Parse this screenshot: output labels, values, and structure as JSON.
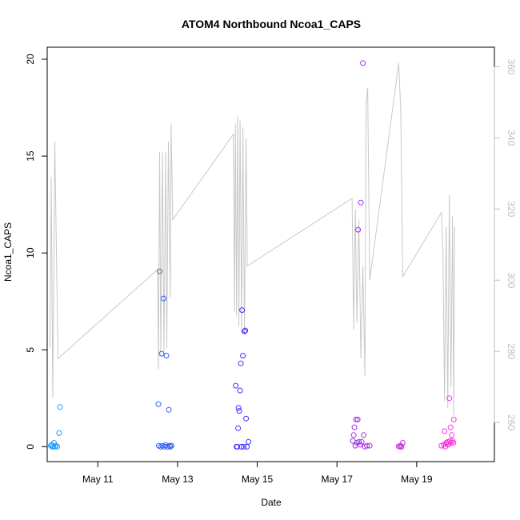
{
  "chart_data": {
    "type": "scatter",
    "title": "ATOM4 Northbound Ncoa1_CAPS",
    "xlabel": "Date",
    "ylabel": "Ncoa1_CAPS",
    "x_ticks": [
      "May 11",
      "May 13",
      "May 15",
      "May 17",
      "May 19"
    ],
    "x_tick_days": [
      11,
      13,
      15,
      17,
      19
    ],
    "xlim": [
      9.73,
      20.95
    ],
    "ylim": [
      -0.77,
      20.62
    ],
    "y_ticks": [
      0,
      5,
      10,
      15,
      20
    ],
    "y2_ticks": [
      260,
      280,
      300,
      320,
      340,
      360
    ],
    "y2lim": [
      249,
      365.5
    ],
    "y2_unit_note": "secondary axis for grey line series",
    "colors": {
      "line": "#c8c8c8",
      "axis": "#000000",
      "axis_right": "#bdbdbd",
      "marker_start": "#1fa2ff",
      "marker_mid": "#3f2bff",
      "marker_end": "#ff33dd"
    },
    "series": [
      {
        "name": "Ncoa1_CAPS",
        "kind": "points",
        "axis": "left",
        "points": [
          [
            9.82,
            0.05
          ],
          [
            9.84,
            0.1
          ],
          [
            9.86,
            0.0
          ],
          [
            9.88,
            0.02
          ],
          [
            9.9,
            0.2
          ],
          [
            9.92,
            0.0
          ],
          [
            9.95,
            0.05
          ],
          [
            9.98,
            0.0
          ],
          [
            10.03,
            0.7
          ],
          [
            10.05,
            2.05
          ],
          [
            12.52,
            2.2
          ],
          [
            12.53,
            0.05
          ],
          [
            12.55,
            9.05
          ],
          [
            12.58,
            0.0
          ],
          [
            12.6,
            4.8
          ],
          [
            12.62,
            0.05
          ],
          [
            12.65,
            7.65
          ],
          [
            12.68,
            0.0
          ],
          [
            12.7,
            0.08
          ],
          [
            12.72,
            4.7
          ],
          [
            12.75,
            0.0
          ],
          [
            12.78,
            1.9
          ],
          [
            12.8,
            0.05
          ],
          [
            12.82,
            0.0
          ],
          [
            12.85,
            0.05
          ],
          [
            14.46,
            3.15
          ],
          [
            14.48,
            0.0
          ],
          [
            14.5,
            0.0
          ],
          [
            14.52,
            0.95
          ],
          [
            14.53,
            2.0
          ],
          [
            14.55,
            1.85
          ],
          [
            14.57,
            2.9
          ],
          [
            14.59,
            4.3
          ],
          [
            14.6,
            0.0
          ],
          [
            14.62,
            7.05
          ],
          [
            14.64,
            4.7
          ],
          [
            14.66,
            0.0
          ],
          [
            14.68,
            5.95
          ],
          [
            14.7,
            6.0
          ],
          [
            14.72,
            1.45
          ],
          [
            14.74,
            0.0
          ],
          [
            14.78,
            0.25
          ],
          [
            17.4,
            0.3
          ],
          [
            17.42,
            0.6
          ],
          [
            17.44,
            1.0
          ],
          [
            17.46,
            0.05
          ],
          [
            17.48,
            1.4
          ],
          [
            17.5,
            0.2
          ],
          [
            17.52,
            1.4
          ],
          [
            17.53,
            11.2
          ],
          [
            17.55,
            0.25
          ],
          [
            17.58,
            0.1
          ],
          [
            17.6,
            12.6
          ],
          [
            17.62,
            0.25
          ],
          [
            17.65,
            19.8
          ],
          [
            17.67,
            0.6
          ],
          [
            17.7,
            0.0
          ],
          [
            17.75,
            0.05
          ],
          [
            17.82,
            0.05
          ],
          [
            18.55,
            0.02
          ],
          [
            18.58,
            0.0
          ],
          [
            18.6,
            0.05
          ],
          [
            18.62,
            0.0
          ],
          [
            18.65,
            0.2
          ],
          [
            19.62,
            0.05
          ],
          [
            19.68,
            0.1
          ],
          [
            19.7,
            0.8
          ],
          [
            19.72,
            0.0
          ],
          [
            19.74,
            0.2
          ],
          [
            19.76,
            0.15
          ],
          [
            19.78,
            0.25
          ],
          [
            19.8,
            0.1
          ],
          [
            19.82,
            2.5
          ],
          [
            19.84,
            0.3
          ],
          [
            19.85,
            1.0
          ],
          [
            19.86,
            0.2
          ],
          [
            19.88,
            0.6
          ],
          [
            19.9,
            0.3
          ],
          [
            19.92,
            0.2
          ],
          [
            19.93,
            1.4
          ]
        ]
      },
      {
        "name": "secondary",
        "kind": "line",
        "axis": "right",
        "points": [
          [
            9.8,
            281
          ],
          [
            9.83,
            329
          ],
          [
            9.87,
            267
          ],
          [
            9.92,
            339
          ],
          [
            10.0,
            278
          ],
          [
            12.5,
            303
          ],
          [
            12.52,
            275
          ],
          [
            12.55,
            336
          ],
          [
            12.58,
            279
          ],
          [
            12.62,
            336
          ],
          [
            12.66,
            280
          ],
          [
            12.7,
            336
          ],
          [
            12.73,
            281
          ],
          [
            12.77,
            339
          ],
          [
            12.82,
            295
          ],
          [
            12.84,
            344
          ],
          [
            12.88,
            317
          ],
          [
            14.4,
            341
          ],
          [
            14.43,
            291
          ],
          [
            14.45,
            344
          ],
          [
            14.48,
            290
          ],
          [
            14.51,
            346
          ],
          [
            14.54,
            287
          ],
          [
            14.57,
            345
          ],
          [
            14.61,
            285
          ],
          [
            14.64,
            343
          ],
          [
            14.68,
            285
          ],
          [
            14.72,
            340
          ],
          [
            14.75,
            304
          ],
          [
            17.38,
            323
          ],
          [
            17.42,
            286
          ],
          [
            17.46,
            320
          ],
          [
            17.5,
            288
          ],
          [
            17.55,
            317
          ],
          [
            17.6,
            278
          ],
          [
            17.65,
            304
          ],
          [
            17.7,
            273
          ],
          [
            17.73,
            350
          ],
          [
            17.77,
            354
          ],
          [
            17.82,
            300
          ],
          [
            18.55,
            361
          ],
          [
            18.6,
            348
          ],
          [
            18.65,
            301
          ],
          [
            19.62,
            319
          ],
          [
            19.66,
            308
          ],
          [
            19.7,
            266
          ],
          [
            19.74,
            315
          ],
          [
            19.78,
            264
          ],
          [
            19.82,
            324
          ],
          [
            19.86,
            270
          ],
          [
            19.9,
            318
          ],
          [
            19.93,
            262
          ],
          [
            19.95,
            315
          ]
        ]
      }
    ]
  }
}
